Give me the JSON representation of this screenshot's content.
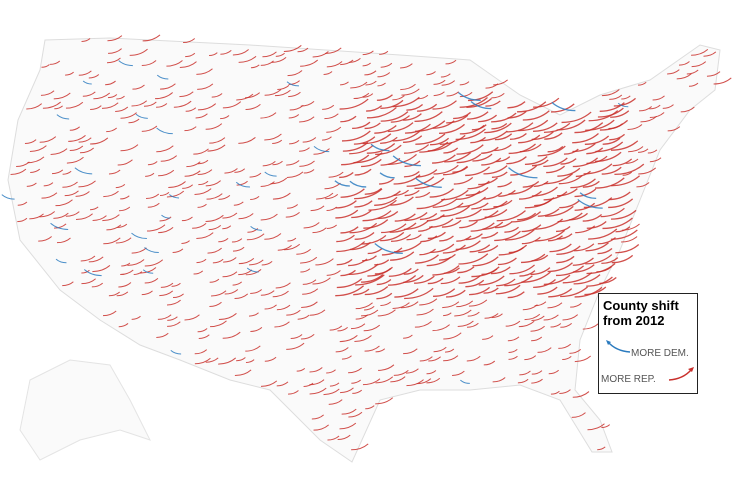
{
  "legend": {
    "title": "County shift from 2012",
    "dem_label": "MORE DEM.",
    "rep_label": "MORE REP."
  }
}
